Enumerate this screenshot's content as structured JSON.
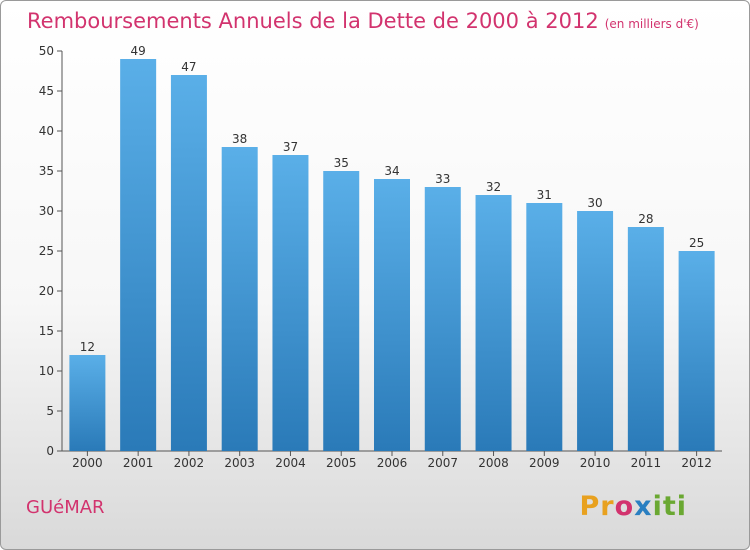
{
  "chart_data": {
    "type": "bar",
    "title": "Remboursements Annuels de la Dette de 2000 à 2012",
    "subtitle": "(en milliers d'€)",
    "categories": [
      "2000",
      "2001",
      "2002",
      "2003",
      "2004",
      "2005",
      "2006",
      "2007",
      "2008",
      "2009",
      "2010",
      "2011",
      "2012"
    ],
    "values": [
      12,
      49,
      47,
      38,
      37,
      35,
      34,
      33,
      32,
      31,
      30,
      28,
      25
    ],
    "ylim": [
      0,
      50
    ],
    "yticks": [
      0,
      5,
      10,
      15,
      20,
      25,
      30,
      35,
      40,
      45,
      50
    ],
    "grid": false,
    "xlabel": "",
    "ylabel": ""
  },
  "footer": {
    "city": "GUéMAR"
  },
  "logo": {
    "text": "Proxiti"
  },
  "colors": {
    "bar_top": "#5aafe8",
    "bar_bottom": "#2a7ab8",
    "title": "#d2336e"
  }
}
